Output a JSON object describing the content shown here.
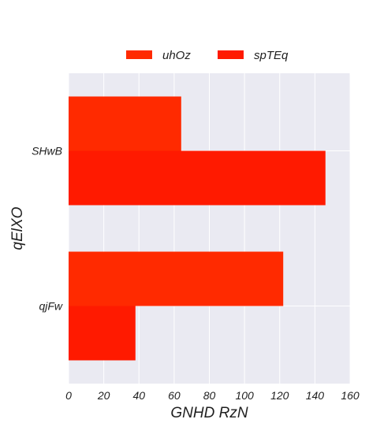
{
  "chart_data": {
    "type": "bar",
    "orientation": "horizontal",
    "title": "",
    "xlabel": "GNHD RzN",
    "ylabel": "qElXO",
    "categories": [
      "SHwB",
      "qjFw"
    ],
    "series": [
      {
        "name": "uhOz",
        "values": [
          64,
          122
        ],
        "color": "#ff2a00"
      },
      {
        "name": "spTEq",
        "values": [
          146,
          38
        ],
        "color": "#ff1a00"
      }
    ],
    "xlim": [
      0,
      160
    ],
    "xticks": [
      0,
      20,
      40,
      60,
      80,
      100,
      120,
      140,
      160
    ],
    "grid": true,
    "legend_position": "top-center",
    "colors": {
      "plot_background": "#eaeaf2",
      "grid": "#ffffff",
      "text": "#1f1f1f"
    }
  }
}
